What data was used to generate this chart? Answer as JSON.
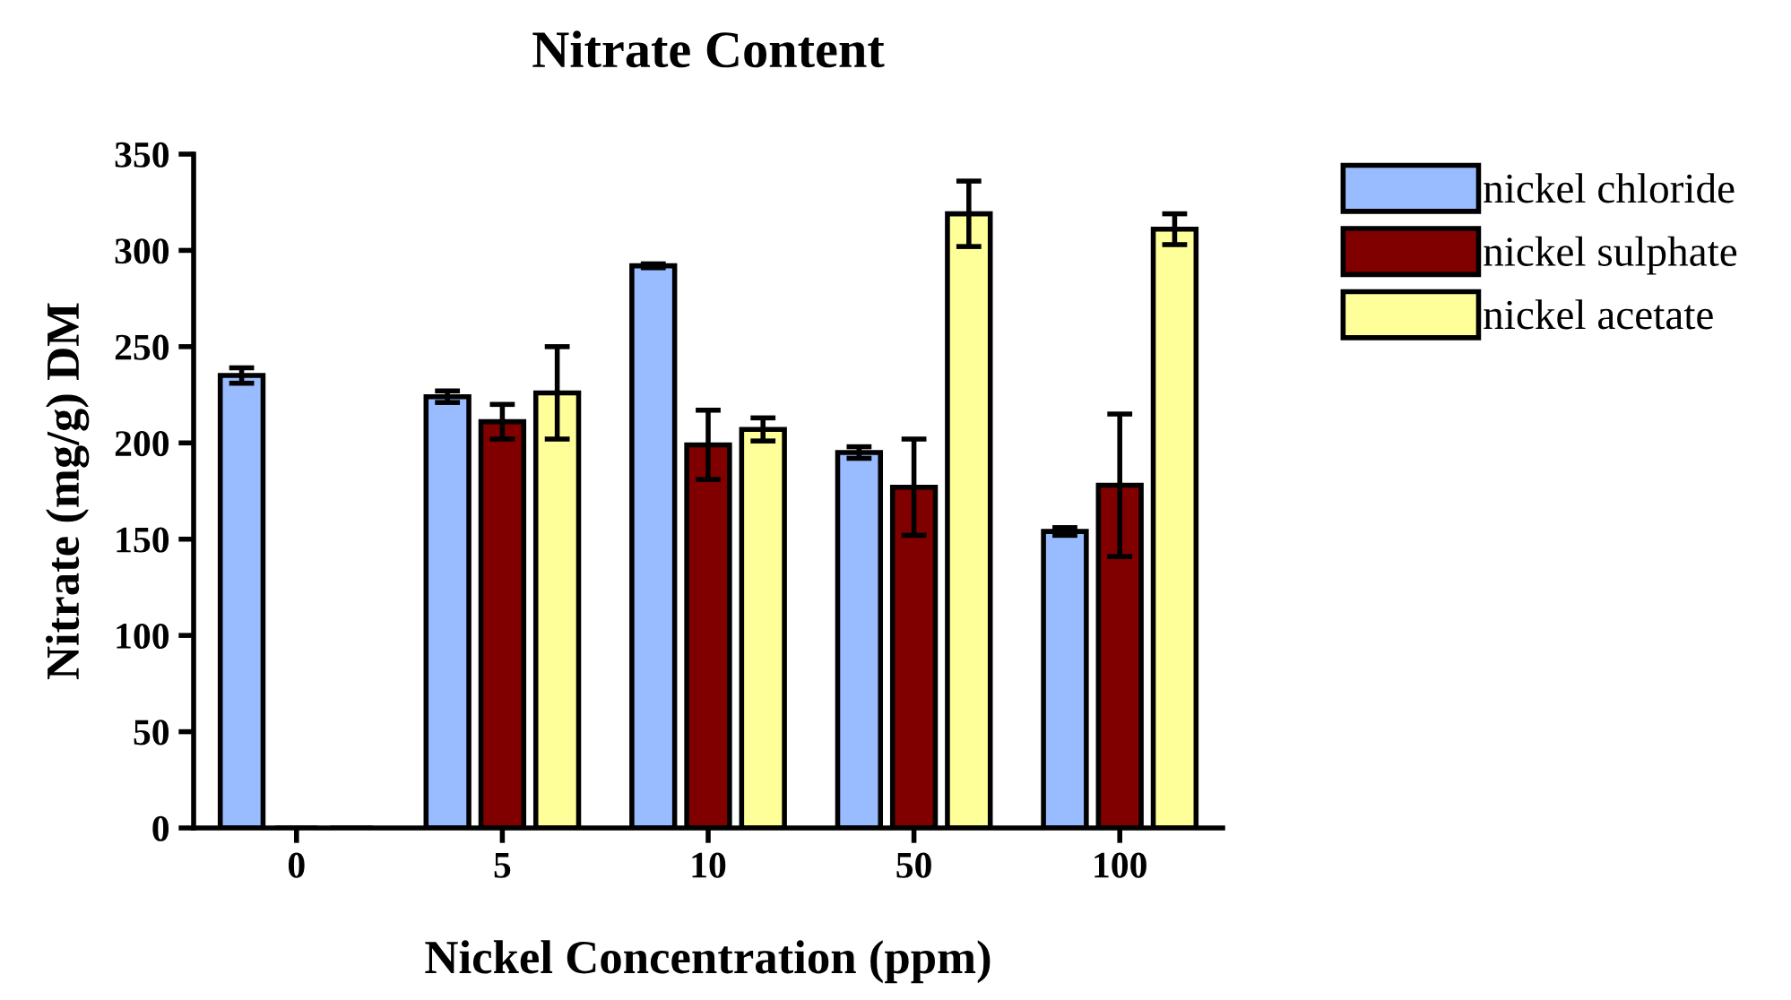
{
  "chart_data": {
    "type": "bar",
    "title": "Nitrate Content",
    "xlabel": "Nickel Concentration (ppm)",
    "ylabel": "Nitrate (mg/g) DM",
    "categories": [
      "0",
      "5",
      "10",
      "50",
      "100"
    ],
    "series": [
      {
        "name": "nickel chloride",
        "color": "#99bbff",
        "values": [
          235,
          224,
          292,
          195,
          154
        ],
        "errors": [
          4,
          3,
          1,
          3,
          2
        ]
      },
      {
        "name": "nickel sulphate",
        "color": "#800000",
        "values": [
          0,
          211,
          199,
          177,
          178
        ],
        "errors": [
          null,
          9,
          18,
          25,
          37
        ]
      },
      {
        "name": "nickel acetate",
        "color": "#ffff99",
        "values": [
          0,
          226,
          207,
          319,
          311
        ],
        "errors": [
          null,
          24,
          6,
          17,
          8
        ]
      }
    ],
    "ylim": [
      0,
      350
    ],
    "yticks": [
      0,
      50,
      100,
      150,
      200,
      250,
      300,
      350
    ],
    "grid": false,
    "legend": "top right"
  }
}
